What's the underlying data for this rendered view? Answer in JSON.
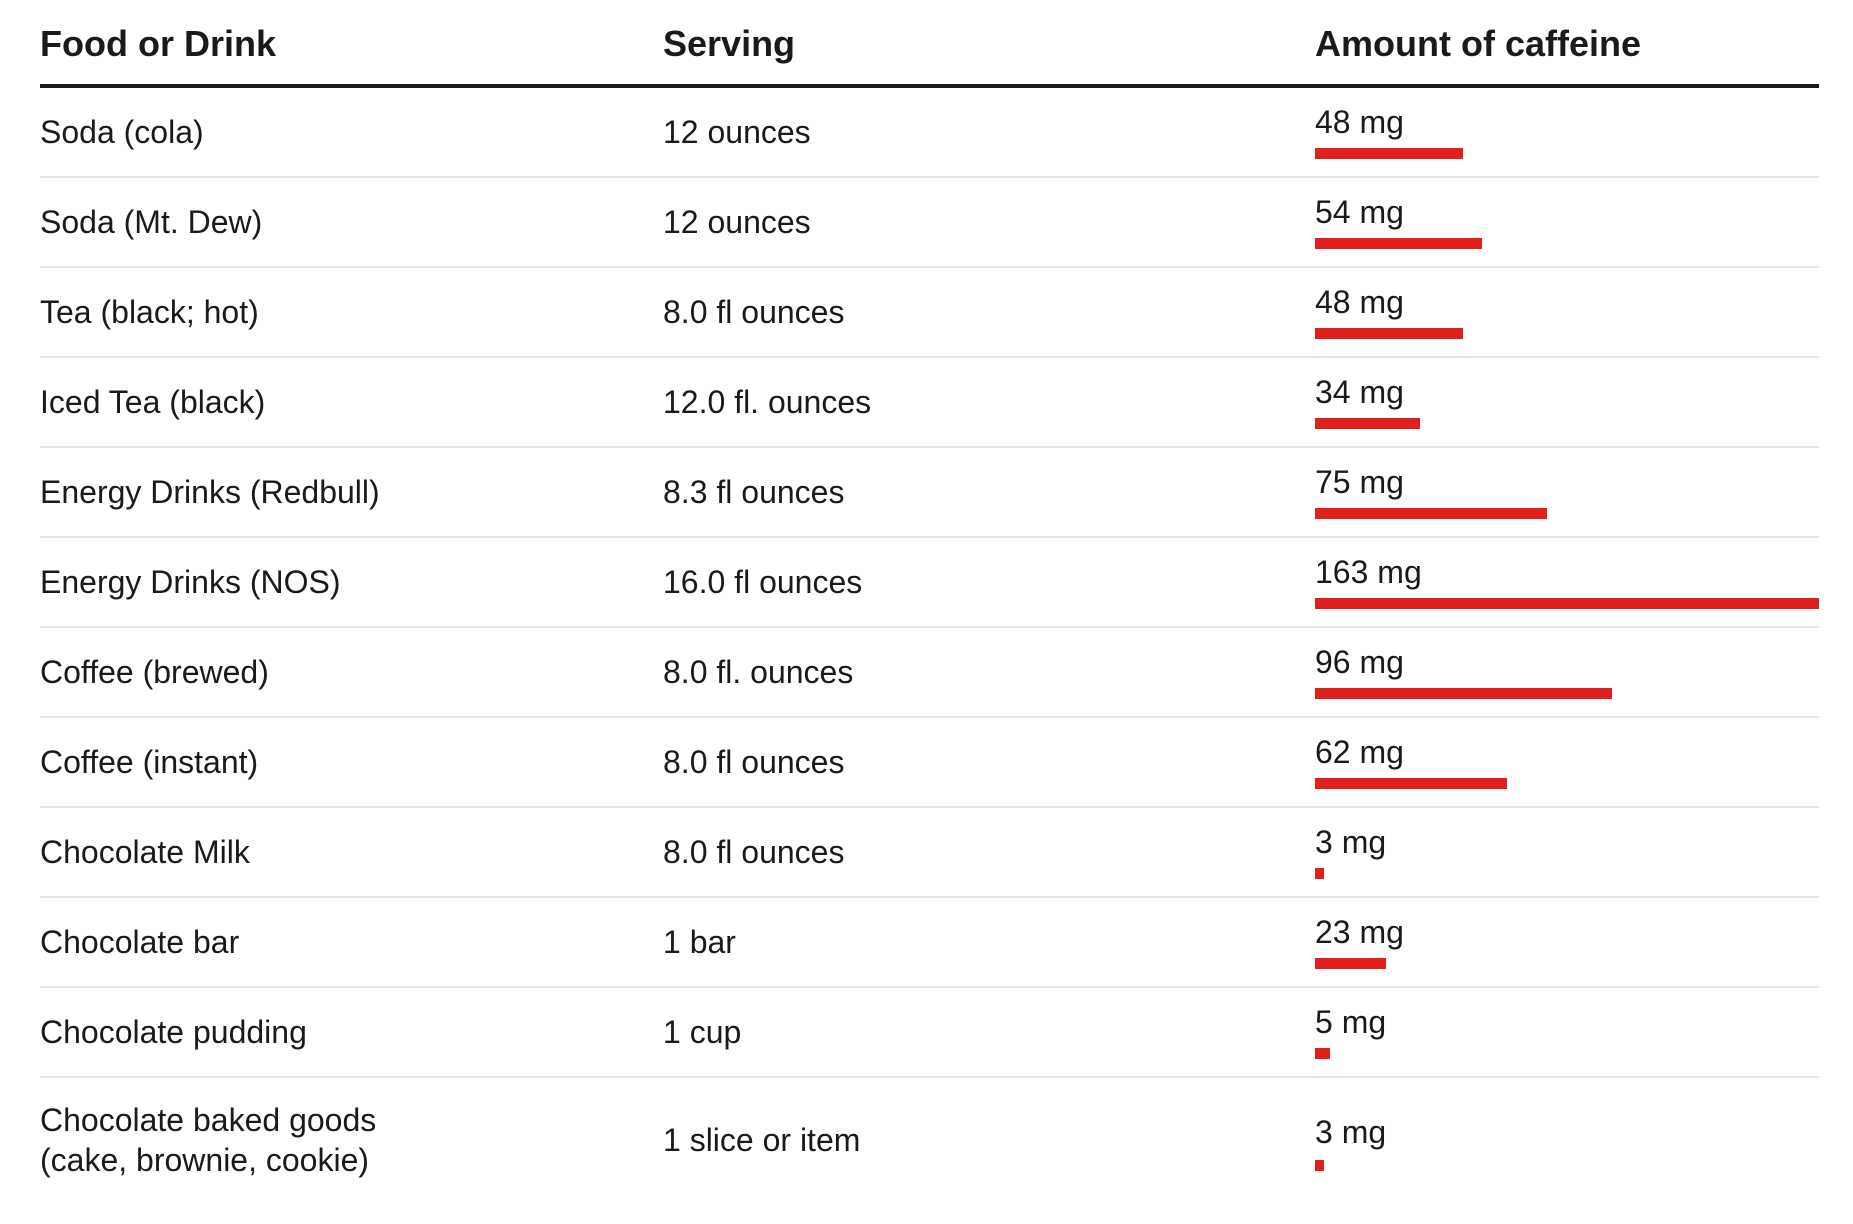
{
  "table": {
    "headers": [
      "Food or Drink",
      "Serving",
      "Amount of caffeine"
    ]
  },
  "chart_data": {
    "type": "table",
    "columns": [
      "Food or Drink",
      "Serving",
      "Amount of caffeine"
    ],
    "bar_color": "#e0201c",
    "bar_max_mg": 163,
    "rows": [
      {
        "food": "Soda (cola)",
        "serving": "12 ounces",
        "amount_label": "48 mg",
        "mg": 48
      },
      {
        "food": "Soda (Mt. Dew)",
        "serving": "12 ounces",
        "amount_label": "54 mg",
        "mg": 54
      },
      {
        "food": "Tea (black; hot)",
        "serving": "8.0 fl ounces",
        "amount_label": "48 mg",
        "mg": 48
      },
      {
        "food": "Iced Tea (black)",
        "serving": "12.0 fl. ounces",
        "amount_label": "34 mg",
        "mg": 34
      },
      {
        "food": "Energy Drinks (Redbull)",
        "serving": "8.3 fl ounces",
        "amount_label": "75 mg",
        "mg": 75
      },
      {
        "food": "Energy Drinks (NOS)",
        "serving": "16.0 fl ounces",
        "amount_label": "163 mg",
        "mg": 163
      },
      {
        "food": "Coffee (brewed)",
        "serving": "8.0 fl. ounces",
        "amount_label": "96 mg",
        "mg": 96
      },
      {
        "food": "Coffee (instant)",
        "serving": "8.0 fl ounces",
        "amount_label": "62 mg",
        "mg": 62
      },
      {
        "food": "Chocolate Milk",
        "serving": "8.0 fl ounces",
        "amount_label": "3 mg",
        "mg": 3
      },
      {
        "food": "Chocolate bar",
        "serving": "1 bar",
        "amount_label": "23 mg",
        "mg": 23
      },
      {
        "food": "Chocolate pudding",
        "serving": "1 cup",
        "amount_label": "5 mg",
        "mg": 5
      },
      {
        "food": "Chocolate baked goods (cake, brownie, cookie)",
        "serving": "1 slice or item",
        "amount_label": "3 mg",
        "mg": 3
      }
    ]
  }
}
